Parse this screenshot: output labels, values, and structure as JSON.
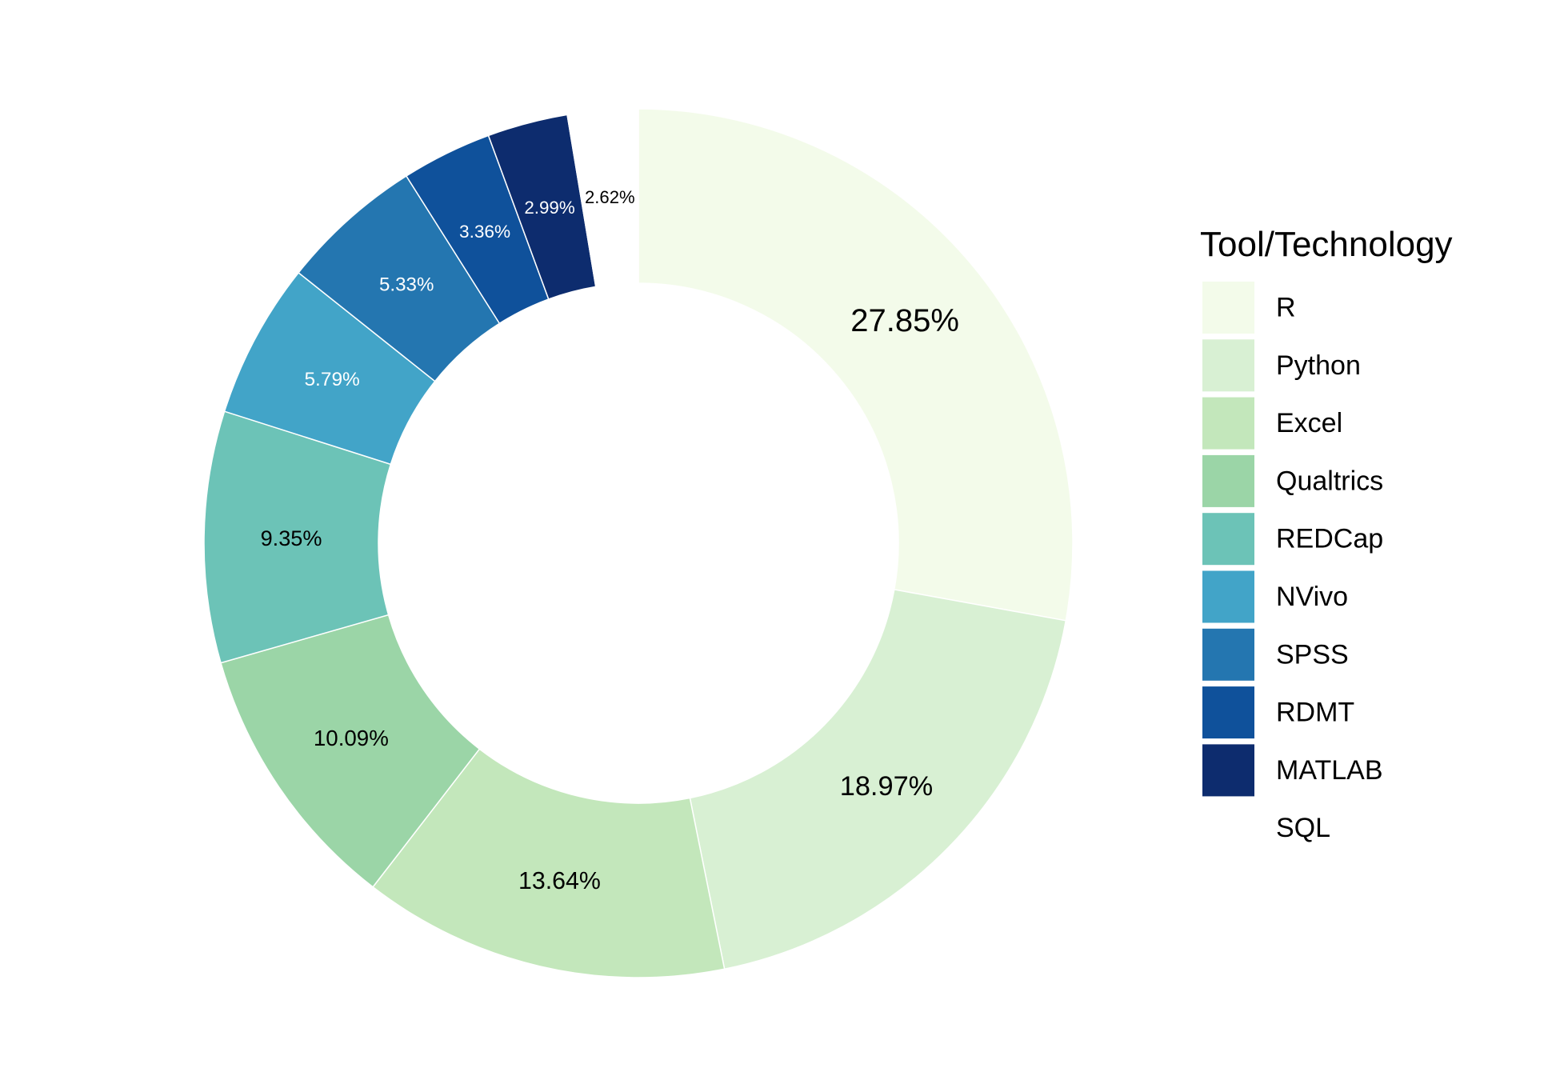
{
  "chart_data": {
    "type": "pie",
    "subtype": "donut",
    "legend_title": "Tool/Technology",
    "legend_position": "right",
    "categories": [
      "R",
      "Python",
      "Excel",
      "Qualtrics",
      "REDCap",
      "NVivo",
      "SPSS",
      "RDMT",
      "MATLAB",
      "SQL"
    ],
    "values": [
      27.85,
      18.97,
      13.64,
      10.09,
      9.35,
      5.79,
      5.33,
      3.36,
      2.99,
      2.62
    ],
    "labels": [
      "27.85%",
      "18.97%",
      "13.64%",
      "10.09%",
      "9.35%",
      "5.79%",
      "5.33%",
      "3.36%",
      "2.99%",
      "2.62%"
    ],
    "colors": [
      "#f3fbea",
      "#d8f0d3",
      "#c3e7bb",
      "#9bd5a7",
      "#6cc3b7",
      "#42a4c8",
      "#2476b0",
      "#0f519b",
      "#0d2c6e",
      "#ffffff"
    ],
    "label_colors": [
      "#000000",
      "#000000",
      "#000000",
      "#000000",
      "#000000",
      "#ffffff",
      "#ffffff",
      "#ffffff",
      "#ffffff",
      "#000000"
    ]
  }
}
